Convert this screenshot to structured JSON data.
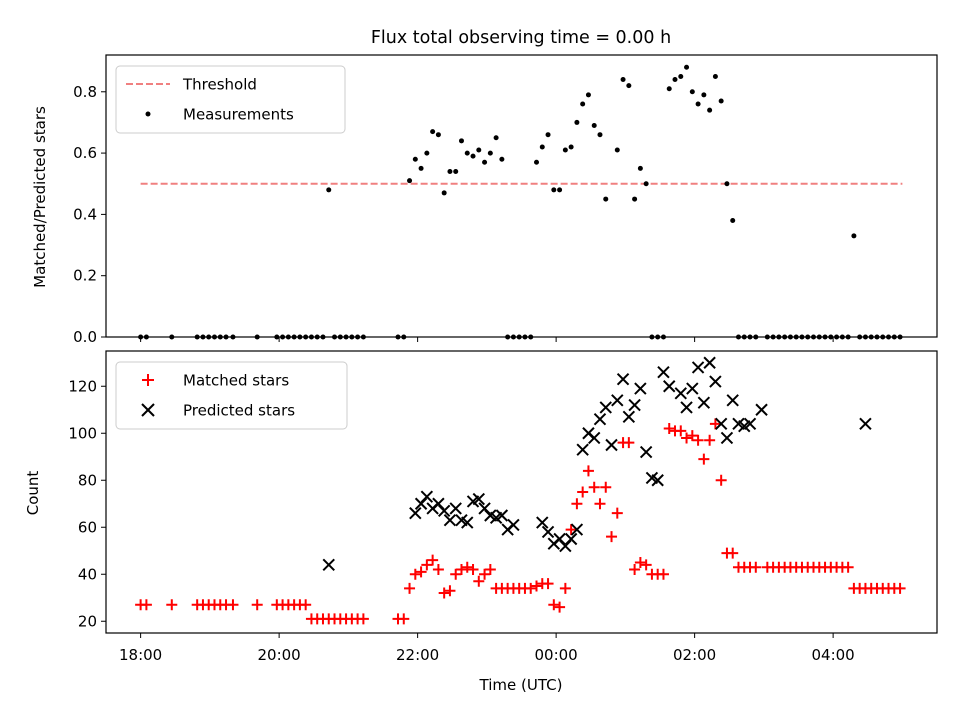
{
  "figure": {
    "title": "Flux total observing time = 0.00 h"
  },
  "chart_data": [
    {
      "type": "scatter",
      "ylabel": "Matched/Predicted stars",
      "xlim": [
        "17:30",
        "05:30"
      ],
      "ylim": [
        0,
        0.92
      ],
      "yticks": [
        0.0,
        0.2,
        0.4,
        0.6,
        0.8
      ],
      "ytick_labels": [
        "0.0",
        "0.2",
        "0.4",
        "0.6",
        "0.8"
      ],
      "legend_placement": "upper-left",
      "series": [
        {
          "name": "Threshold",
          "kind": "dashed-line",
          "color": "#f08080",
          "x": [
            "18:00",
            "05:00"
          ],
          "y": [
            0.5,
            0.5
          ]
        },
        {
          "name": "Measurements",
          "kind": "dot",
          "color": "#000000",
          "x": [
            "18:00",
            "18:05",
            "18:27",
            "18:49",
            "18:54",
            "18:59",
            "19:04",
            "19:09",
            "19:14",
            "19:20",
            "19:41",
            "19:58",
            "20:03",
            "20:08",
            "20:13",
            "20:18",
            "20:23",
            "20:28",
            "20:33",
            "20:38",
            "20:43",
            "20:48",
            "20:53",
            "20:58",
            "21:03",
            "21:08",
            "21:13",
            "21:43",
            "21:48",
            "21:53",
            "21:58",
            "22:03",
            "22:08",
            "22:13",
            "22:18",
            "22:23",
            "22:28",
            "22:33",
            "22:38",
            "22:43",
            "22:48",
            "22:53",
            "22:58",
            "23:03",
            "23:08",
            "23:13",
            "23:18",
            "23:23",
            "23:28",
            "23:33",
            "23:38",
            "23:43",
            "23:48",
            "23:53",
            "23:58",
            "00:03",
            "00:08",
            "00:13",
            "00:18",
            "00:23",
            "00:28",
            "00:33",
            "00:38",
            "00:43",
            "00:53",
            "00:58",
            "01:03",
            "01:08",
            "01:13",
            "01:18",
            "01:23",
            "01:28",
            "01:33",
            "01:38",
            "01:43",
            "01:48",
            "01:53",
            "01:58",
            "02:03",
            "02:08",
            "02:13",
            "02:18",
            "02:23",
            "02:28",
            "02:33",
            "02:38",
            "02:43",
            "02:48",
            "02:53",
            "03:03",
            "03:08",
            "03:13",
            "03:18",
            "03:23",
            "03:28",
            "03:33",
            "03:38",
            "03:43",
            "03:48",
            "03:53",
            "03:58",
            "04:03",
            "04:08",
            "04:13",
            "04:18",
            "04:23",
            "04:28",
            "04:33",
            "04:38",
            "04:43",
            "04:48",
            "04:53",
            "04:58"
          ],
          "y": [
            0.0,
            0.0,
            0.0,
            0.0,
            0.0,
            0.0,
            0.0,
            0.0,
            0.0,
            0.0,
            0.0,
            0.0,
            0.0,
            0.0,
            0.0,
            0.0,
            0.0,
            0.0,
            0.0,
            0.0,
            0.48,
            0.0,
            0.0,
            0.0,
            0.0,
            0.0,
            0.0,
            0.0,
            0.0,
            0.51,
            0.58,
            0.55,
            0.6,
            0.67,
            0.66,
            0.47,
            0.54,
            0.54,
            0.64,
            0.6,
            0.59,
            0.61,
            0.57,
            0.6,
            0.65,
            0.58,
            0.0,
            0.0,
            0.0,
            0.0,
            0.0,
            0.57,
            0.62,
            0.66,
            0.48,
            0.48,
            0.61,
            0.62,
            0.7,
            0.76,
            0.79,
            0.69,
            0.66,
            0.45,
            0.61,
            0.84,
            0.82,
            0.45,
            0.55,
            0.5,
            0.0,
            0.0,
            0.0,
            0.81,
            0.84,
            0.85,
            0.88,
            0.8,
            0.76,
            0.79,
            0.74,
            0.85,
            0.77,
            0.5,
            0.38,
            0.0,
            0.0,
            0.0,
            0.0,
            0.0,
            0.0,
            0.0,
            0.0,
            0.0,
            0.0,
            0.0,
            0.0,
            0.0,
            0.0,
            0.0,
            0.0,
            0.0,
            0.0,
            0.0,
            0.33,
            0.0,
            0.0,
            0.0,
            0.0,
            0.0,
            0.0,
            0.0,
            0.0
          ]
        }
      ]
    },
    {
      "type": "scatter",
      "xlabel": "Time (UTC)",
      "ylabel": "Count",
      "xlim": [
        "17:30",
        "05:30"
      ],
      "ylim": [
        15,
        135
      ],
      "yticks": [
        20,
        40,
        60,
        80,
        100,
        120
      ],
      "ytick_labels": [
        "20",
        "40",
        "60",
        "80",
        "100",
        "120"
      ],
      "xticks": [
        "18:00",
        "20:00",
        "22:00",
        "00:00",
        "02:00",
        "04:00"
      ],
      "legend_placement": "upper-left",
      "series": [
        {
          "name": "Matched stars",
          "kind": "plus",
          "color": "#ff0000",
          "x": [
            "18:00",
            "18:05",
            "18:27",
            "18:49",
            "18:54",
            "18:59",
            "19:04",
            "19:09",
            "19:14",
            "19:20",
            "19:41",
            "19:58",
            "20:03",
            "20:08",
            "20:13",
            "20:18",
            "20:23",
            "20:28",
            "20:33",
            "20:38",
            "20:43",
            "20:48",
            "20:53",
            "20:58",
            "21:03",
            "21:08",
            "21:13",
            "21:43",
            "21:48",
            "21:53",
            "21:58",
            "22:03",
            "22:08",
            "22:13",
            "22:18",
            "22:23",
            "22:28",
            "22:33",
            "22:38",
            "22:43",
            "22:48",
            "22:53",
            "22:58",
            "23:03",
            "23:08",
            "23:13",
            "23:18",
            "23:23",
            "23:28",
            "23:33",
            "23:38",
            "23:43",
            "23:48",
            "23:53",
            "23:58",
            "00:03",
            "00:08",
            "00:13",
            "00:18",
            "00:23",
            "00:28",
            "00:33",
            "00:38",
            "00:43",
            "00:48",
            "00:53",
            "00:58",
            "01:03",
            "01:08",
            "01:13",
            "01:18",
            "01:23",
            "01:28",
            "01:33",
            "01:38",
            "01:43",
            "01:48",
            "01:53",
            "01:58",
            "02:03",
            "02:08",
            "02:13",
            "02:18",
            "02:23",
            "02:28",
            "02:33",
            "02:38",
            "02:43",
            "02:48",
            "02:53",
            "03:03",
            "03:08",
            "03:13",
            "03:18",
            "03:23",
            "03:28",
            "03:33",
            "03:38",
            "03:43",
            "03:48",
            "03:53",
            "03:58",
            "04:03",
            "04:08",
            "04:13",
            "04:18",
            "04:23",
            "04:28",
            "04:33",
            "04:38",
            "04:43",
            "04:48",
            "04:53",
            "04:58"
          ],
          "y": [
            27,
            27,
            27,
            27,
            27,
            27,
            27,
            27,
            27,
            27,
            27,
            27,
            27,
            27,
            27,
            27,
            27,
            21,
            21,
            21,
            21,
            21,
            21,
            21,
            21,
            21,
            21,
            21,
            21,
            34,
            40,
            41,
            44,
            46,
            42,
            32,
            33,
            40,
            42,
            43,
            42,
            37,
            40,
            42,
            34,
            34,
            34,
            34,
            34,
            34,
            34,
            35,
            36,
            36,
            27,
            26,
            34,
            59,
            70,
            75,
            84,
            77,
            70,
            77,
            56,
            66,
            96,
            96,
            42,
            45,
            44,
            40,
            40,
            40,
            102,
            101,
            101,
            98,
            99,
            97,
            89,
            97,
            104,
            80,
            49,
            49,
            43,
            43,
            43,
            43,
            43,
            43,
            43,
            43,
            43,
            43,
            43,
            43,
            43,
            43,
            43,
            43,
            43,
            43,
            43,
            34,
            34,
            34,
            34,
            34,
            34,
            34,
            34,
            34
          ]
        },
        {
          "name": "Predicted stars",
          "kind": "cross",
          "color": "#000000",
          "x": [
            "20:43",
            "21:58",
            "22:03",
            "22:08",
            "22:13",
            "22:18",
            "22:23",
            "22:28",
            "22:33",
            "22:38",
            "22:43",
            "22:48",
            "22:53",
            "22:58",
            "23:03",
            "23:08",
            "23:13",
            "23:18",
            "23:23",
            "23:48",
            "23:53",
            "23:58",
            "00:03",
            "00:08",
            "00:13",
            "00:18",
            "00:23",
            "00:28",
            "00:33",
            "00:38",
            "00:43",
            "00:48",
            "00:53",
            "00:58",
            "01:03",
            "01:08",
            "01:13",
            "01:18",
            "01:23",
            "01:28",
            "01:33",
            "01:38",
            "01:48",
            "01:53",
            "01:58",
            "02:03",
            "02:08",
            "02:13",
            "02:18",
            "02:23",
            "02:28",
            "02:33",
            "02:38",
            "02:43",
            "02:48",
            "02:58",
            "04:28"
          ],
          "y": [
            44,
            66,
            70,
            73,
            68,
            70,
            67,
            63,
            68,
            63,
            62,
            71,
            72,
            68,
            65,
            64,
            65,
            59,
            61,
            62,
            58,
            53,
            55,
            52,
            55,
            59,
            93,
            100,
            98,
            106,
            111,
            95,
            114,
            123,
            107,
            112,
            119,
            92,
            81,
            80,
            126,
            120,
            117,
            111,
            119,
            128,
            113,
            130,
            122,
            104,
            98,
            114,
            104,
            103,
            104,
            110,
            104
          ]
        }
      ]
    }
  ]
}
